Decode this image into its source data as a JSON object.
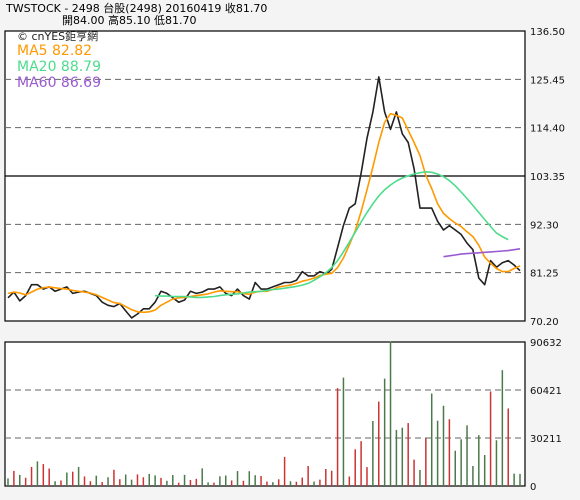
{
  "header": {
    "line1": "TWSTOCK  -  2498  台股(2498)  20160419    收81.70",
    "line2": "開84.00     高85.10     低81.70"
  },
  "watermark": "© cnYES鉅亨網",
  "legend": [
    {
      "label": "MA5 82.82",
      "color": "#ff9900"
    },
    {
      "label": "MA20 88.79",
      "color": "#4ddc8c"
    },
    {
      "label": "MA60 86.69",
      "color": "#9a5ad0"
    }
  ],
  "chart_data": [
    {
      "type": "line",
      "title": "",
      "ylim": [
        70.2,
        136.5
      ],
      "yticks": [
        "136.50",
        "125.45",
        "114.40",
        "103.35",
        "92.30",
        "81.25",
        "70.20"
      ],
      "grid": "horizontal dashed lines at ticks; solid line at 103.35",
      "n_days": 88,
      "series": [
        {
          "name": "Close",
          "color": "#222222",
          "values": [
            75.5,
            76.8,
            74.8,
            76.0,
            78.5,
            78.5,
            77.5,
            78.0,
            77.0,
            77.5,
            78.0,
            76.5,
            76.8,
            77.0,
            76.5,
            76.0,
            74.5,
            73.8,
            73.5,
            74.2,
            72.5,
            70.9,
            71.8,
            73.0,
            73.0,
            74.5,
            77.0,
            76.5,
            75.5,
            74.5,
            75.0,
            77.0,
            76.5,
            76.8,
            77.5,
            77.5,
            78.0,
            76.5,
            76.0,
            77.5,
            76.0,
            75.2,
            79.0,
            77.5,
            77.5,
            78.0,
            78.5,
            79.0,
            79.0,
            79.5,
            81.5,
            80.5,
            80.5,
            81.5,
            81.0,
            82.0,
            87.0,
            92.0,
            96.0,
            97.0,
            104.0,
            112.0,
            118.0,
            126.0,
            118.0,
            114.0,
            118.0,
            113.0,
            111.0,
            105.0,
            96.0,
            96.0,
            96.0,
            93.0,
            91.0,
            92.0,
            91.0,
            90.0,
            88.0,
            86.5,
            80.0,
            78.5,
            84.0,
            82.5,
            83.5,
            84.0,
            83.0,
            81.7
          ]
        },
        {
          "name": "MA5",
          "color": "#ff9900",
          "values": [
            76.5,
            76.8,
            76.6,
            76.2,
            76.8,
            77.5,
            77.8,
            78.0,
            77.8,
            77.6,
            77.5,
            77.2,
            77.0,
            76.8,
            76.6,
            76.2,
            75.6,
            75.0,
            74.4,
            74.2,
            73.5,
            72.8,
            72.3,
            72.2,
            72.3,
            72.7,
            73.8,
            74.5,
            75.2,
            75.5,
            75.6,
            75.8,
            76.0,
            76.2,
            76.4,
            76.8,
            77.1,
            77.0,
            76.9,
            76.9,
            76.5,
            76.3,
            76.8,
            77.0,
            77.0,
            77.4,
            78.0,
            78.2,
            78.4,
            78.8,
            79.3,
            79.6,
            80.0,
            80.6,
            80.9,
            81.1,
            82.4,
            84.6,
            87.6,
            90.8,
            95.2,
            100.2,
            105.4,
            111.0,
            115.6,
            117.6,
            117.2,
            116.6,
            113.8,
            111.0,
            108.0,
            103.5,
            100.5,
            97.0,
            94.8,
            93.6,
            92.6,
            91.8,
            90.6,
            89.5,
            87.5,
            84.8,
            83.4,
            82.2,
            81.5,
            81.5,
            82.2,
            82.8
          ]
        },
        {
          "name": "MA20",
          "color": "#4ddc8c",
          "startIndex": 25,
          "values": [
            76.0,
            75.9,
            75.9,
            75.8,
            75.8,
            75.8,
            75.7,
            75.6,
            75.6,
            75.7,
            75.8,
            76.0,
            76.2,
            76.3,
            76.4,
            76.6,
            76.8,
            76.9,
            77.0,
            77.2,
            77.4,
            77.5,
            77.7,
            77.9,
            78.1,
            78.4,
            78.8,
            79.5,
            80.3,
            81.2,
            82.4,
            84.0,
            86.0,
            88.2,
            90.5,
            92.8,
            95.0,
            97.0,
            98.8,
            100.2,
            101.3,
            102.2,
            102.9,
            103.4,
            103.8,
            104.1,
            104.3,
            104.2,
            103.8,
            103.2,
            102.3,
            101.1,
            99.7,
            98.2,
            96.6,
            95.0,
            93.4,
            91.8,
            90.3,
            89.5,
            88.8
          ]
        },
        {
          "name": "MA60",
          "color": "#9a5ad0",
          "startIndex": 74,
          "values": [
            84.9,
            85.1,
            85.3,
            85.5,
            85.6,
            85.7,
            85.8,
            85.9,
            86.0,
            86.1,
            86.2,
            86.3,
            86.5,
            86.7
          ]
        }
      ]
    },
    {
      "type": "bar",
      "title": "",
      "ylim": [
        0,
        90632
      ],
      "yticks": [
        "90632",
        "60421",
        "30211",
        "0"
      ],
      "grid": "horizontal dashed lines at 60421 and 30211",
      "up_color": "#cc3333",
      "down_color": "#4a7a4a",
      "values": [
        4800,
        9500,
        7000,
        5200,
        12000,
        15500,
        13800,
        11000,
        3000,
        3500,
        8500,
        9000,
        12000,
        6000,
        3000,
        6500,
        2500,
        5500,
        10200,
        4300,
        7200,
        4000,
        7300,
        5500,
        7600,
        6700,
        5100,
        3300,
        6900,
        2100,
        7000,
        3800,
        4500,
        11100,
        2300,
        2100,
        6100,
        6600,
        3500,
        9400,
        3300,
        9300,
        6800,
        6300,
        2800,
        2400,
        4200,
        18300,
        3000,
        2700,
        5300,
        12600,
        2800,
        4000,
        10700,
        9600,
        61600,
        68200,
        6000,
        23100,
        28200,
        11900,
        40900,
        53100,
        67600,
        91000,
        35300,
        36700,
        39600,
        16600,
        10100,
        29900,
        58200,
        41100,
        50500,
        42000,
        22200,
        29400,
        38200,
        12600,
        32000,
        19500,
        59500,
        28800,
        72900,
        48800,
        7800,
        7600
      ],
      "up": [
        false,
        true,
        false,
        true,
        true,
        false,
        true,
        true,
        false,
        true,
        false,
        true,
        false,
        true,
        true,
        false,
        true,
        false,
        true,
        true,
        false,
        false,
        true,
        true,
        false,
        false,
        true,
        false,
        false,
        true,
        false,
        true,
        true,
        false,
        false,
        true,
        false,
        false,
        true,
        false,
        true,
        false,
        false,
        true,
        true,
        false,
        true,
        true,
        false,
        true,
        true,
        true,
        false,
        true,
        true,
        true,
        true,
        false,
        true,
        true,
        true,
        true,
        false,
        true,
        false,
        false,
        false,
        false,
        true,
        true,
        false,
        true,
        false,
        false,
        false,
        true,
        false,
        false,
        false,
        false,
        false,
        false,
        true,
        false,
        false,
        true,
        false,
        false
      ]
    }
  ]
}
